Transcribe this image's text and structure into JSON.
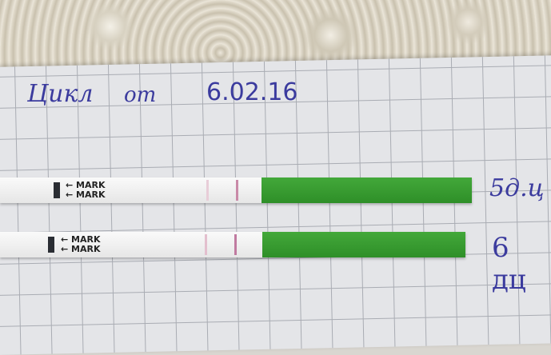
{
  "heading": {
    "label": "Цикл",
    "from": "от",
    "date": "6.02.16"
  },
  "strips": [
    {
      "mark1": "← MARK",
      "mark2": "← MARK",
      "label": "5д.ц"
    },
    {
      "mark1": "← MARK",
      "mark2": "← MARK",
      "label": "6 дц"
    }
  ],
  "colors": {
    "ink": "#3b3b9e",
    "wick": "#3a9e32",
    "test_line": "#c98aa8"
  }
}
